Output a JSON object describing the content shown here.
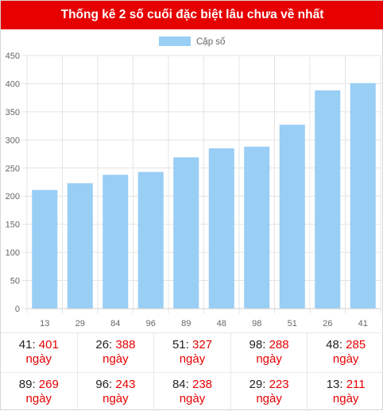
{
  "header": {
    "title": "Thống kê 2 số cuối đặc biệt lâu chưa về nhất"
  },
  "colors": {
    "header_bg": "#e60000",
    "bar": "#99cef5",
    "highlight": "#e60000"
  },
  "chart_data": {
    "type": "bar",
    "title": "",
    "xlabel": "",
    "ylabel": "",
    "categories": [
      "13",
      "29",
      "84",
      "96",
      "89",
      "48",
      "98",
      "51",
      "26",
      "41"
    ],
    "series": [
      {
        "name": "Cặp số",
        "values": [
          211,
          223,
          238,
          243,
          269,
          285,
          288,
          327,
          388,
          401
        ]
      }
    ],
    "ylim": [
      0,
      450
    ],
    "yticks": [
      "0",
      "50",
      "100",
      "150",
      "200",
      "250",
      "300",
      "350",
      "400",
      "450"
    ],
    "grid": true,
    "legend": "top-center"
  },
  "summary": {
    "rows": [
      [
        {
          "number": "41",
          "count": "401",
          "unit": "ngày"
        },
        {
          "number": "26",
          "count": "388",
          "unit": "ngày"
        },
        {
          "number": "51",
          "count": "327",
          "unit": "ngày"
        },
        {
          "number": "98",
          "count": "288",
          "unit": "ngày"
        },
        {
          "number": "48",
          "count": "285",
          "unit": "ngày"
        }
      ],
      [
        {
          "number": "89",
          "count": "269",
          "unit": "ngày"
        },
        {
          "number": "96",
          "count": "243",
          "unit": "ngày"
        },
        {
          "number": "84",
          "count": "238",
          "unit": "ngày"
        },
        {
          "number": "29",
          "count": "223",
          "unit": "ngày"
        },
        {
          "number": "13",
          "count": "211",
          "unit": "ngày"
        }
      ]
    ]
  }
}
